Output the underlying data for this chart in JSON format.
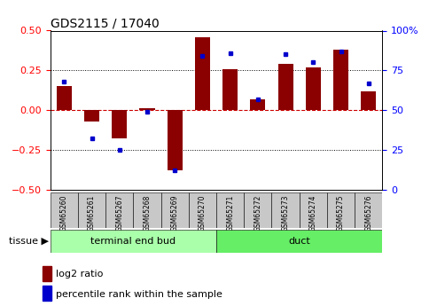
{
  "title": "GDS2115 / 17040",
  "samples": [
    "GSM65260",
    "GSM65261",
    "GSM65267",
    "GSM65268",
    "GSM65269",
    "GSM65270",
    "GSM65271",
    "GSM65272",
    "GSM65273",
    "GSM65274",
    "GSM65275",
    "GSM65276"
  ],
  "log2_ratio": [
    0.15,
    -0.07,
    -0.18,
    0.01,
    -0.38,
    0.46,
    0.26,
    0.07,
    0.29,
    0.27,
    0.38,
    0.12
  ],
  "percentile_rank": [
    68,
    32,
    25,
    49,
    12,
    84,
    86,
    57,
    85,
    80,
    87,
    67
  ],
  "groups": [
    {
      "label": "terminal end bud",
      "start": 0,
      "end": 6
    },
    {
      "label": "duct",
      "start": 6,
      "end": 12
    }
  ],
  "group_colors": [
    "#aaffaa",
    "#66ee66"
  ],
  "ylim_left": [
    -0.5,
    0.5
  ],
  "ylim_right": [
    0,
    100
  ],
  "yticks_left": [
    -0.5,
    -0.25,
    0.0,
    0.25,
    0.5
  ],
  "yticks_right": [
    0,
    25,
    50,
    75,
    100
  ],
  "bar_color": "#8B0000",
  "dot_color": "#0000CC",
  "hline_color": "#CC0000",
  "dotline_color": "black",
  "tissue_label": "tissue",
  "legend_log2": "log2 ratio",
  "legend_pct": "percentile rank within the sample",
  "bar_width": 0.55,
  "sample_box_color": "#c8c8c8",
  "fig_bg": "#ffffff"
}
